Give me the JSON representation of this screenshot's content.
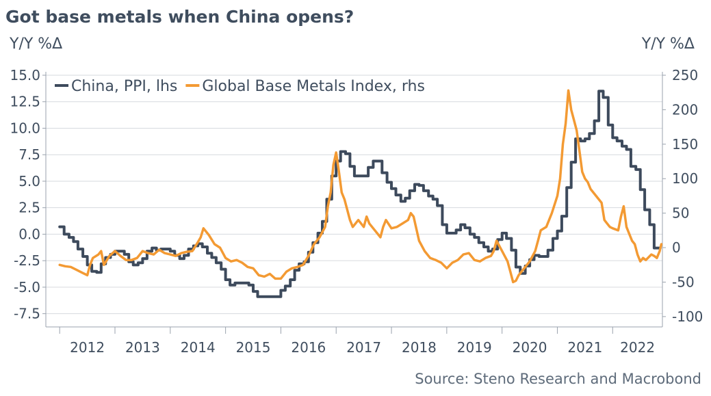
{
  "chart_data": {
    "type": "line",
    "title": "Got base metals when China opens?",
    "ylabel_left": "Y/Y %Δ",
    "ylabel_right": "Y/Y %Δ",
    "source": "Source: Steno Research and Macrobond",
    "x_ticks": [
      "2012",
      "2013",
      "2014",
      "2015",
      "2016",
      "2017",
      "2018",
      "2019",
      "2020",
      "2021",
      "2022"
    ],
    "xlim": [
      2011.75,
      2022.9
    ],
    "y_left": {
      "ticks": [
        "15.0",
        "12.5",
        "10.0",
        "7.5",
        "5.0",
        "2.5",
        "0.0",
        "-2.5",
        "-5.0",
        "-7.5"
      ],
      "ylim": [
        -8.75,
        15.0
      ]
    },
    "y_right": {
      "ticks": [
        "250",
        "200",
        "150",
        "100",
        "50",
        "0",
        "-50",
        "-100"
      ],
      "ylim": [
        -115,
        250
      ]
    },
    "grid": true,
    "legend_position": "top-left",
    "series": [
      {
        "name": "China, PPI, lhs",
        "axis": "left",
        "color": "#3d4a5c",
        "step": true,
        "points": [
          [
            2012.0,
            0.7
          ],
          [
            2012.08,
            0.0
          ],
          [
            2012.17,
            -0.3
          ],
          [
            2012.25,
            -0.7
          ],
          [
            2012.33,
            -1.4
          ],
          [
            2012.42,
            -2.1
          ],
          [
            2012.5,
            -2.9
          ],
          [
            2012.58,
            -3.5
          ],
          [
            2012.67,
            -3.6
          ],
          [
            2012.75,
            -2.8
          ],
          [
            2012.83,
            -2.2
          ],
          [
            2012.92,
            -1.9
          ],
          [
            2013.0,
            -1.6
          ],
          [
            2013.08,
            -1.6
          ],
          [
            2013.17,
            -1.9
          ],
          [
            2013.25,
            -2.6
          ],
          [
            2013.33,
            -2.9
          ],
          [
            2013.42,
            -2.7
          ],
          [
            2013.5,
            -2.3
          ],
          [
            2013.58,
            -1.6
          ],
          [
            2013.67,
            -1.3
          ],
          [
            2013.75,
            -1.5
          ],
          [
            2013.83,
            -1.4
          ],
          [
            2013.92,
            -1.4
          ],
          [
            2014.0,
            -1.6
          ],
          [
            2014.08,
            -2.0
          ],
          [
            2014.17,
            -2.3
          ],
          [
            2014.25,
            -2.0
          ],
          [
            2014.33,
            -1.4
          ],
          [
            2014.42,
            -1.1
          ],
          [
            2014.5,
            -0.9
          ],
          [
            2014.58,
            -1.2
          ],
          [
            2014.67,
            -1.8
          ],
          [
            2014.75,
            -2.2
          ],
          [
            2014.83,
            -2.7
          ],
          [
            2014.92,
            -3.3
          ],
          [
            2015.0,
            -4.3
          ],
          [
            2015.08,
            -4.8
          ],
          [
            2015.17,
            -4.6
          ],
          [
            2015.25,
            -4.6
          ],
          [
            2015.33,
            -4.6
          ],
          [
            2015.42,
            -4.8
          ],
          [
            2015.5,
            -5.4
          ],
          [
            2015.58,
            -5.9
          ],
          [
            2015.67,
            -5.9
          ],
          [
            2015.75,
            -5.9
          ],
          [
            2015.83,
            -5.9
          ],
          [
            2015.92,
            -5.9
          ],
          [
            2016.0,
            -5.3
          ],
          [
            2016.08,
            -4.9
          ],
          [
            2016.17,
            -4.3
          ],
          [
            2016.25,
            -3.4
          ],
          [
            2016.33,
            -2.8
          ],
          [
            2016.42,
            -2.6
          ],
          [
            2016.5,
            -1.7
          ],
          [
            2016.58,
            -0.8
          ],
          [
            2016.67,
            0.1
          ],
          [
            2016.75,
            1.2
          ],
          [
            2016.83,
            3.3
          ],
          [
            2016.92,
            5.5
          ],
          [
            2017.0,
            6.9
          ],
          [
            2017.08,
            7.8
          ],
          [
            2017.17,
            7.6
          ],
          [
            2017.25,
            6.4
          ],
          [
            2017.33,
            5.5
          ],
          [
            2017.42,
            5.5
          ],
          [
            2017.5,
            5.5
          ],
          [
            2017.58,
            6.3
          ],
          [
            2017.67,
            6.9
          ],
          [
            2017.75,
            6.9
          ],
          [
            2017.83,
            5.8
          ],
          [
            2017.92,
            4.9
          ],
          [
            2018.0,
            4.3
          ],
          [
            2018.08,
            3.7
          ],
          [
            2018.17,
            3.1
          ],
          [
            2018.25,
            3.4
          ],
          [
            2018.33,
            4.1
          ],
          [
            2018.42,
            4.7
          ],
          [
            2018.5,
            4.6
          ],
          [
            2018.58,
            4.1
          ],
          [
            2018.67,
            3.6
          ],
          [
            2018.75,
            3.3
          ],
          [
            2018.83,
            2.7
          ],
          [
            2018.92,
            0.9
          ],
          [
            2019.0,
            0.1
          ],
          [
            2019.08,
            0.1
          ],
          [
            2019.17,
            0.4
          ],
          [
            2019.25,
            0.9
          ],
          [
            2019.33,
            0.6
          ],
          [
            2019.42,
            0.0
          ],
          [
            2019.5,
            -0.3
          ],
          [
            2019.58,
            -0.8
          ],
          [
            2019.67,
            -1.2
          ],
          [
            2019.75,
            -1.6
          ],
          [
            2019.83,
            -1.4
          ],
          [
            2019.92,
            -0.5
          ],
          [
            2020.0,
            0.1
          ],
          [
            2020.08,
            -0.4
          ],
          [
            2020.17,
            -1.5
          ],
          [
            2020.25,
            -3.1
          ],
          [
            2020.33,
            -3.7
          ],
          [
            2020.42,
            -3.0
          ],
          [
            2020.5,
            -2.4
          ],
          [
            2020.58,
            -2.0
          ],
          [
            2020.67,
            -2.1
          ],
          [
            2020.75,
            -2.1
          ],
          [
            2020.83,
            -1.5
          ],
          [
            2020.92,
            -0.4
          ],
          [
            2021.0,
            0.3
          ],
          [
            2021.08,
            1.7
          ],
          [
            2021.17,
            4.4
          ],
          [
            2021.25,
            6.8
          ],
          [
            2021.33,
            9.0
          ],
          [
            2021.42,
            8.8
          ],
          [
            2021.5,
            9.0
          ],
          [
            2021.58,
            9.5
          ],
          [
            2021.67,
            10.7
          ],
          [
            2021.75,
            13.5
          ],
          [
            2021.83,
            12.9
          ],
          [
            2021.92,
            10.3
          ],
          [
            2022.0,
            9.1
          ],
          [
            2022.08,
            8.8
          ],
          [
            2022.17,
            8.3
          ],
          [
            2022.25,
            8.0
          ],
          [
            2022.33,
            6.4
          ],
          [
            2022.42,
            6.1
          ],
          [
            2022.5,
            4.2
          ],
          [
            2022.58,
            2.3
          ],
          [
            2022.67,
            0.9
          ],
          [
            2022.75,
            -1.3
          ],
          [
            2022.83,
            -1.3
          ],
          [
            2022.86,
            -1.3
          ]
        ]
      },
      {
        "name": "Global Base Metals Index, rhs",
        "axis": "right",
        "color": "#f39a33",
        "step": false,
        "points": [
          [
            2012.0,
            -25
          ],
          [
            2012.1,
            -27
          ],
          [
            2012.2,
            -28
          ],
          [
            2012.3,
            -32
          ],
          [
            2012.4,
            -36
          ],
          [
            2012.5,
            -40
          ],
          [
            2012.55,
            -25
          ],
          [
            2012.6,
            -15
          ],
          [
            2012.7,
            -10
          ],
          [
            2012.75,
            -5
          ],
          [
            2012.8,
            -25
          ],
          [
            2012.9,
            -12
          ],
          [
            2013.0,
            -5
          ],
          [
            2013.1,
            -12
          ],
          [
            2013.2,
            -18
          ],
          [
            2013.3,
            -18
          ],
          [
            2013.4,
            -15
          ],
          [
            2013.5,
            -5
          ],
          [
            2013.6,
            -8
          ],
          [
            2013.7,
            -10
          ],
          [
            2013.8,
            -3
          ],
          [
            2013.9,
            -8
          ],
          [
            2014.0,
            -10
          ],
          [
            2014.1,
            -12
          ],
          [
            2014.2,
            -8
          ],
          [
            2014.3,
            -6
          ],
          [
            2014.4,
            -5
          ],
          [
            2014.5,
            8
          ],
          [
            2014.55,
            15
          ],
          [
            2014.6,
            28
          ],
          [
            2014.7,
            18
          ],
          [
            2014.8,
            5
          ],
          [
            2014.9,
            0
          ],
          [
            2015.0,
            -15
          ],
          [
            2015.1,
            -20
          ],
          [
            2015.2,
            -18
          ],
          [
            2015.3,
            -22
          ],
          [
            2015.4,
            -28
          ],
          [
            2015.5,
            -30
          ],
          [
            2015.6,
            -40
          ],
          [
            2015.7,
            -42
          ],
          [
            2015.8,
            -38
          ],
          [
            2015.9,
            -45
          ],
          [
            2016.0,
            -45
          ],
          [
            2016.1,
            -35
          ],
          [
            2016.2,
            -30
          ],
          [
            2016.3,
            -28
          ],
          [
            2016.4,
            -25
          ],
          [
            2016.5,
            -12
          ],
          [
            2016.6,
            5
          ],
          [
            2016.7,
            15
          ],
          [
            2016.8,
            30
          ],
          [
            2016.85,
            60
          ],
          [
            2016.9,
            80
          ],
          [
            2016.95,
            120
          ],
          [
            2017.0,
            138
          ],
          [
            2017.05,
            110
          ],
          [
            2017.1,
            80
          ],
          [
            2017.15,
            70
          ],
          [
            2017.2,
            55
          ],
          [
            2017.25,
            40
          ],
          [
            2017.3,
            30
          ],
          [
            2017.4,
            40
          ],
          [
            2017.5,
            30
          ],
          [
            2017.55,
            45
          ],
          [
            2017.6,
            35
          ],
          [
            2017.7,
            25
          ],
          [
            2017.8,
            15
          ],
          [
            2017.85,
            30
          ],
          [
            2017.9,
            40
          ],
          [
            2018.0,
            28
          ],
          [
            2018.1,
            30
          ],
          [
            2018.2,
            35
          ],
          [
            2018.3,
            40
          ],
          [
            2018.35,
            50
          ],
          [
            2018.4,
            45
          ],
          [
            2018.5,
            10
          ],
          [
            2018.6,
            -5
          ],
          [
            2018.7,
            -15
          ],
          [
            2018.8,
            -18
          ],
          [
            2018.9,
            -22
          ],
          [
            2019.0,
            -30
          ],
          [
            2019.1,
            -22
          ],
          [
            2019.2,
            -18
          ],
          [
            2019.3,
            -10
          ],
          [
            2019.4,
            -8
          ],
          [
            2019.5,
            -18
          ],
          [
            2019.6,
            -20
          ],
          [
            2019.7,
            -15
          ],
          [
            2019.8,
            -12
          ],
          [
            2019.85,
            -5
          ],
          [
            2019.9,
            10
          ],
          [
            2020.0,
            -5
          ],
          [
            2020.1,
            -20
          ],
          [
            2020.15,
            -35
          ],
          [
            2020.2,
            -50
          ],
          [
            2020.25,
            -48
          ],
          [
            2020.3,
            -40
          ],
          [
            2020.4,
            -30
          ],
          [
            2020.5,
            -20
          ],
          [
            2020.6,
            -5
          ],
          [
            2020.65,
            10
          ],
          [
            2020.7,
            25
          ],
          [
            2020.8,
            30
          ],
          [
            2020.9,
            50
          ],
          [
            2021.0,
            75
          ],
          [
            2021.05,
            100
          ],
          [
            2021.1,
            150
          ],
          [
            2021.15,
            180
          ],
          [
            2021.2,
            228
          ],
          [
            2021.25,
            200
          ],
          [
            2021.3,
            185
          ],
          [
            2021.35,
            170
          ],
          [
            2021.4,
            140
          ],
          [
            2021.45,
            110
          ],
          [
            2021.5,
            100
          ],
          [
            2021.55,
            95
          ],
          [
            2021.6,
            85
          ],
          [
            2021.7,
            75
          ],
          [
            2021.8,
            65
          ],
          [
            2021.85,
            40
          ],
          [
            2021.9,
            35
          ],
          [
            2021.95,
            30
          ],
          [
            2022.0,
            28
          ],
          [
            2022.1,
            25
          ],
          [
            2022.15,
            45
          ],
          [
            2022.2,
            60
          ],
          [
            2022.25,
            30
          ],
          [
            2022.3,
            20
          ],
          [
            2022.35,
            10
          ],
          [
            2022.4,
            5
          ],
          [
            2022.45,
            -10
          ],
          [
            2022.5,
            -20
          ],
          [
            2022.55,
            -15
          ],
          [
            2022.6,
            -18
          ],
          [
            2022.7,
            -10
          ],
          [
            2022.75,
            -12
          ],
          [
            2022.8,
            -15
          ],
          [
            2022.85,
            -5
          ],
          [
            2022.88,
            5
          ]
        ]
      }
    ]
  }
}
